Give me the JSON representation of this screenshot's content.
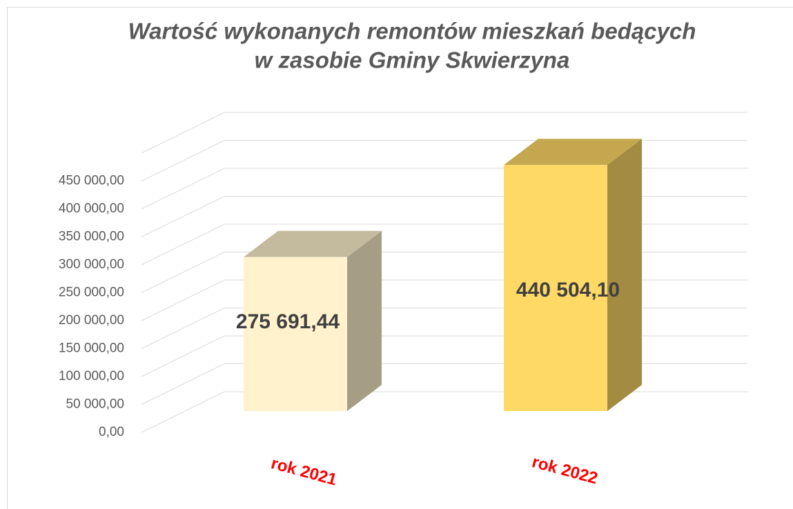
{
  "chart_data": {
    "type": "bar3d",
    "title": [
      "Wartość wykonanych remontów mieszkań bedących",
      "w zasobie Gminy Skwierzyna"
    ],
    "categories": [
      "rok 2021",
      "rok 2022"
    ],
    "values": [
      275691.44,
      440504.1
    ],
    "value_labels": [
      "275 691,44",
      "440 504,10"
    ],
    "colors": [
      "#fff2cc",
      "#ffd966"
    ],
    "ylim": [
      0,
      500000
    ],
    "yticks": [
      {
        "value": 0,
        "label": "0,00"
      },
      {
        "value": 50000,
        "label": "50 000,00"
      },
      {
        "value": 100000,
        "label": "100 000,00"
      },
      {
        "value": 150000,
        "label": "150 000,00"
      },
      {
        "value": 200000,
        "label": "200 000,00"
      },
      {
        "value": 250000,
        "label": "250 000,00"
      },
      {
        "value": 300000,
        "label": "300 000,00"
      },
      {
        "value": 350000,
        "label": "350 000,00"
      },
      {
        "value": 400000,
        "label": "400 000,00"
      },
      {
        "value": 450000,
        "label": "450 000,00"
      }
    ],
    "grid": true
  }
}
